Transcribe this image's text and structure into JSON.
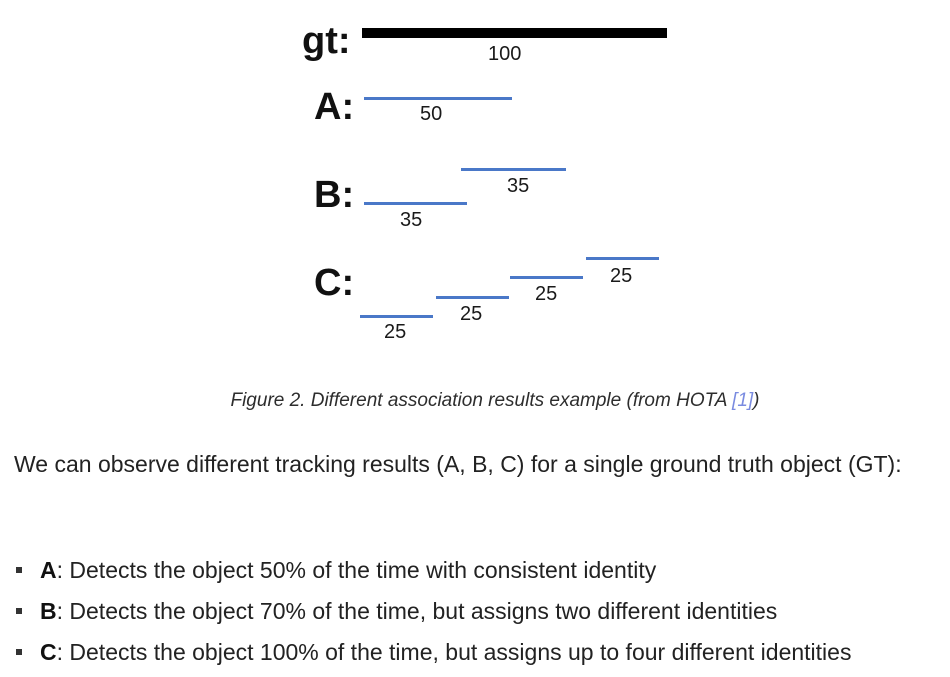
{
  "figure": {
    "rows": {
      "gt": {
        "label": "gt:",
        "segments": [
          {
            "value": "100"
          }
        ]
      },
      "a": {
        "label": "A:",
        "segments": [
          {
            "value": "50"
          }
        ]
      },
      "b": {
        "label": "B:",
        "segments": [
          {
            "value": "35"
          },
          {
            "value": "35"
          }
        ]
      },
      "c": {
        "label": "C:",
        "segments": [
          {
            "value": "25"
          },
          {
            "value": "25"
          },
          {
            "value": "25"
          },
          {
            "value": "25"
          }
        ]
      }
    },
    "colors": {
      "gt_line": "#000000",
      "prediction_line": "#4a78c8"
    }
  },
  "caption": {
    "text": "Figure 2. Different association results example (from HOTA ",
    "ref_label": "[1]",
    "suffix": ")"
  },
  "paragraph": {
    "text": "We can observe different tracking results (A, B, C) for a single ground truth object (GT):"
  },
  "bullets": [
    {
      "term": "A",
      "text": ": Detects the object 50% of the time with consistent identity"
    },
    {
      "term": "B",
      "text": ": Detects the object 70% of the time, but assigns two different identities"
    },
    {
      "term": "C",
      "text": ": Detects the object 100% of the time, but assigns up to four different identities"
    }
  ]
}
